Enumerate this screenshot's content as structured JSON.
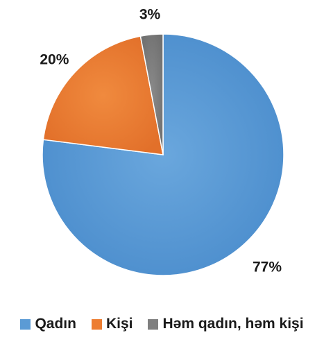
{
  "chart_data": {
    "type": "pie",
    "title": "",
    "categories": [
      "Qadın",
      "Kişi",
      "Həm qadın, həm kişi"
    ],
    "values": [
      77,
      20,
      3
    ],
    "labels": [
      "77%",
      "20%",
      "3%"
    ],
    "colors": [
      "#5B9BD5",
      "#ED7D31",
      "#7F7F7F"
    ],
    "start_angle_deg": 0,
    "direction": "clockwise",
    "legend_position": "bottom"
  }
}
